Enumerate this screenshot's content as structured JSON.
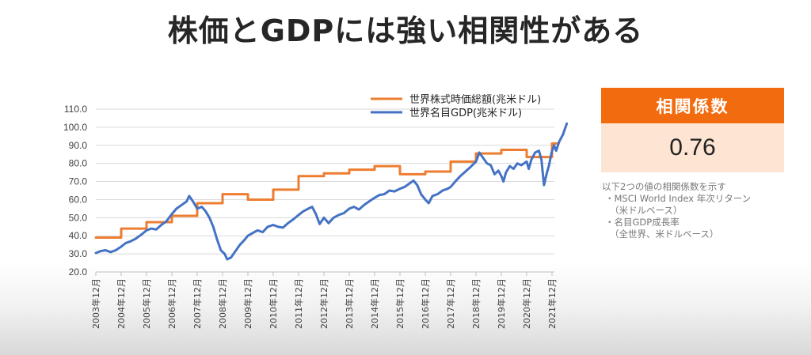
{
  "slide": {
    "title": "株価とGDPには強い相関性がある"
  },
  "panel": {
    "header": "相関係数",
    "value": "0.76",
    "notes": [
      "以下2つの値の相関係数を示す",
      "・MSCI World Index 年次リターン",
      "（米ドルベース）",
      "・名目GDP成長率",
      "（全世界、米ドルベース）"
    ]
  },
  "colors": {
    "accent": "#f26b0f",
    "accent_light": "#fde4d3",
    "series_orange": "#ed7d31",
    "series_blue": "#4472c4"
  },
  "chart_data": {
    "type": "line",
    "title": "",
    "xlabel": "",
    "ylabel": "",
    "ylim": [
      20,
      110
    ],
    "yticks": [
      "20.0",
      "30.0",
      "40.0",
      "50.0",
      "60.0",
      "70.0",
      "80.0",
      "90.0",
      "100.0",
      "110.0"
    ],
    "xlim": [
      2003.917,
      2021.917
    ],
    "x_categories": [
      "2003年12月",
      "2004年12月",
      "2005年12月",
      "2006年12月",
      "2007年12月",
      "2008年12月",
      "2009年12月",
      "2010年12月",
      "2011年12月",
      "2012年12月",
      "2013年12月",
      "2014年12月",
      "2015年12月",
      "2016年12月",
      "2017年12月",
      "2018年12月",
      "2019年12月",
      "2020年12月",
      "2021年12月"
    ],
    "grid": "horizontal",
    "legend": "top",
    "series": [
      {
        "name": "世界株式時価総額(兆米ドル)",
        "color": "#ed7d31",
        "step": true,
        "points": [
          [
            2003.917,
            39
          ],
          [
            2004.917,
            44
          ],
          [
            2005.917,
            47.5
          ],
          [
            2006.917,
            51
          ],
          [
            2007.917,
            58
          ],
          [
            2008.917,
            63
          ],
          [
            2009.917,
            60
          ],
          [
            2010.917,
            65.5
          ],
          [
            2011.917,
            73
          ],
          [
            2012.917,
            74.5
          ],
          [
            2013.917,
            76.5
          ],
          [
            2014.917,
            78.5
          ],
          [
            2015.917,
            74
          ],
          [
            2016.917,
            75.5
          ],
          [
            2017.917,
            81
          ],
          [
            2018.917,
            85.5
          ],
          [
            2019.917,
            87.5
          ],
          [
            2020.917,
            83.5
          ],
          [
            2021.917,
            91
          ]
        ]
      },
      {
        "name": "世界名目GDP(兆米ドル)",
        "color": "#4472c4",
        "step": false,
        "points": [
          [
            2003.917,
            30.5
          ],
          [
            2004.1,
            31.5
          ],
          [
            2004.3,
            32
          ],
          [
            2004.5,
            31
          ],
          [
            2004.7,
            32
          ],
          [
            2004.917,
            34
          ],
          [
            2005.1,
            36
          ],
          [
            2005.3,
            37
          ],
          [
            2005.5,
            38.5
          ],
          [
            2005.7,
            40.5
          ],
          [
            2005.917,
            43
          ],
          [
            2006.1,
            44
          ],
          [
            2006.3,
            43.5
          ],
          [
            2006.5,
            46
          ],
          [
            2006.7,
            48
          ],
          [
            2006.917,
            52
          ],
          [
            2007.1,
            55
          ],
          [
            2007.3,
            57
          ],
          [
            2007.5,
            59
          ],
          [
            2007.6,
            62
          ],
          [
            2007.75,
            59
          ],
          [
            2007.917,
            55
          ],
          [
            2008.1,
            56
          ],
          [
            2008.25,
            53.5
          ],
          [
            2008.4,
            50
          ],
          [
            2008.55,
            45
          ],
          [
            2008.7,
            38
          ],
          [
            2008.85,
            32
          ],
          [
            2009.0,
            30
          ],
          [
            2009.1,
            27
          ],
          [
            2009.25,
            28
          ],
          [
            2009.4,
            31
          ],
          [
            2009.6,
            35
          ],
          [
            2009.8,
            38
          ],
          [
            2009.917,
            40
          ],
          [
            2010.1,
            41.5
          ],
          [
            2010.3,
            43
          ],
          [
            2010.5,
            42
          ],
          [
            2010.7,
            45
          ],
          [
            2010.917,
            46
          ],
          [
            2011.1,
            45
          ],
          [
            2011.3,
            44.5
          ],
          [
            2011.5,
            47
          ],
          [
            2011.7,
            49
          ],
          [
            2011.917,
            51.5
          ],
          [
            2012.1,
            53.5
          ],
          [
            2012.3,
            55
          ],
          [
            2012.45,
            56
          ],
          [
            2012.6,
            52
          ],
          [
            2012.75,
            46.5
          ],
          [
            2012.917,
            50
          ],
          [
            2013.1,
            47
          ],
          [
            2013.3,
            50
          ],
          [
            2013.5,
            51.5
          ],
          [
            2013.7,
            52.5
          ],
          [
            2013.917,
            55
          ],
          [
            2014.1,
            56
          ],
          [
            2014.3,
            54.5
          ],
          [
            2014.5,
            57
          ],
          [
            2014.7,
            59
          ],
          [
            2014.917,
            61
          ],
          [
            2015.1,
            62.5
          ],
          [
            2015.3,
            63
          ],
          [
            2015.5,
            65
          ],
          [
            2015.7,
            64.5
          ],
          [
            2015.917,
            66
          ],
          [
            2016.1,
            67
          ],
          [
            2016.3,
            69
          ],
          [
            2016.45,
            70.5
          ],
          [
            2016.6,
            68
          ],
          [
            2016.75,
            63
          ],
          [
            2016.917,
            60
          ],
          [
            2017.05,
            58
          ],
          [
            2017.2,
            62
          ],
          [
            2017.4,
            63
          ],
          [
            2017.6,
            65
          ],
          [
            2017.8,
            66
          ],
          [
            2017.917,
            67
          ],
          [
            2018.1,
            70
          ],
          [
            2018.3,
            73
          ],
          [
            2018.5,
            75.5
          ],
          [
            2018.7,
            78
          ],
          [
            2018.917,
            81
          ],
          [
            2019.05,
            86
          ],
          [
            2019.2,
            83
          ],
          [
            2019.35,
            80
          ],
          [
            2019.5,
            79
          ],
          [
            2019.65,
            74
          ],
          [
            2019.8,
            76
          ],
          [
            2019.917,
            73
          ],
          [
            2020.0,
            70
          ],
          [
            2020.1,
            75
          ],
          [
            2020.25,
            78.5
          ],
          [
            2020.4,
            77
          ],
          [
            2020.55,
            80
          ],
          [
            2020.7,
            79
          ],
          [
            2020.917,
            81
          ],
          [
            2021.0,
            77
          ],
          [
            2021.1,
            82
          ],
          [
            2021.25,
            86
          ],
          [
            2021.4,
            87
          ],
          [
            2021.5,
            82
          ],
          [
            2021.55,
            75
          ],
          [
            2021.6,
            68
          ],
          [
            2021.7,
            74
          ],
          [
            2021.8,
            79
          ],
          [
            2021.9,
            86
          ],
          [
            2022.0,
            90
          ],
          [
            2022.08,
            87
          ],
          [
            2022.2,
            92
          ],
          [
            2022.35,
            96
          ],
          [
            2022.45,
            100
          ],
          [
            2022.5,
            102
          ]
        ]
      }
    ]
  }
}
